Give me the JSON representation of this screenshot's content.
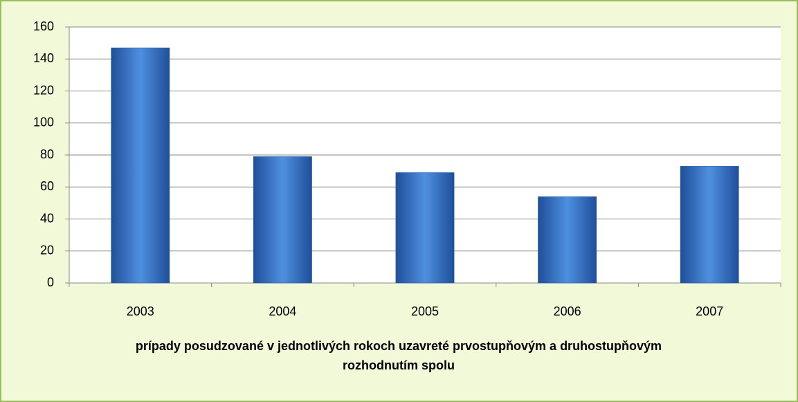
{
  "chart_data": {
    "type": "bar",
    "x_label": "prípady posudzované v jednotlivých rokoch uzavreté prvostupňovým a druhostupňovým rozhodnutím spolu",
    "categories": [
      "2003",
      "2004",
      "2005",
      "2006",
      "2007"
    ],
    "values": [
      147,
      79,
      69,
      54,
      73
    ],
    "color": "#4f8fe0",
    "ylim": [
      0,
      160
    ],
    "yticks": [
      0,
      20,
      40,
      60,
      80,
      100,
      120,
      140,
      160
    ],
    "grid": true
  }
}
